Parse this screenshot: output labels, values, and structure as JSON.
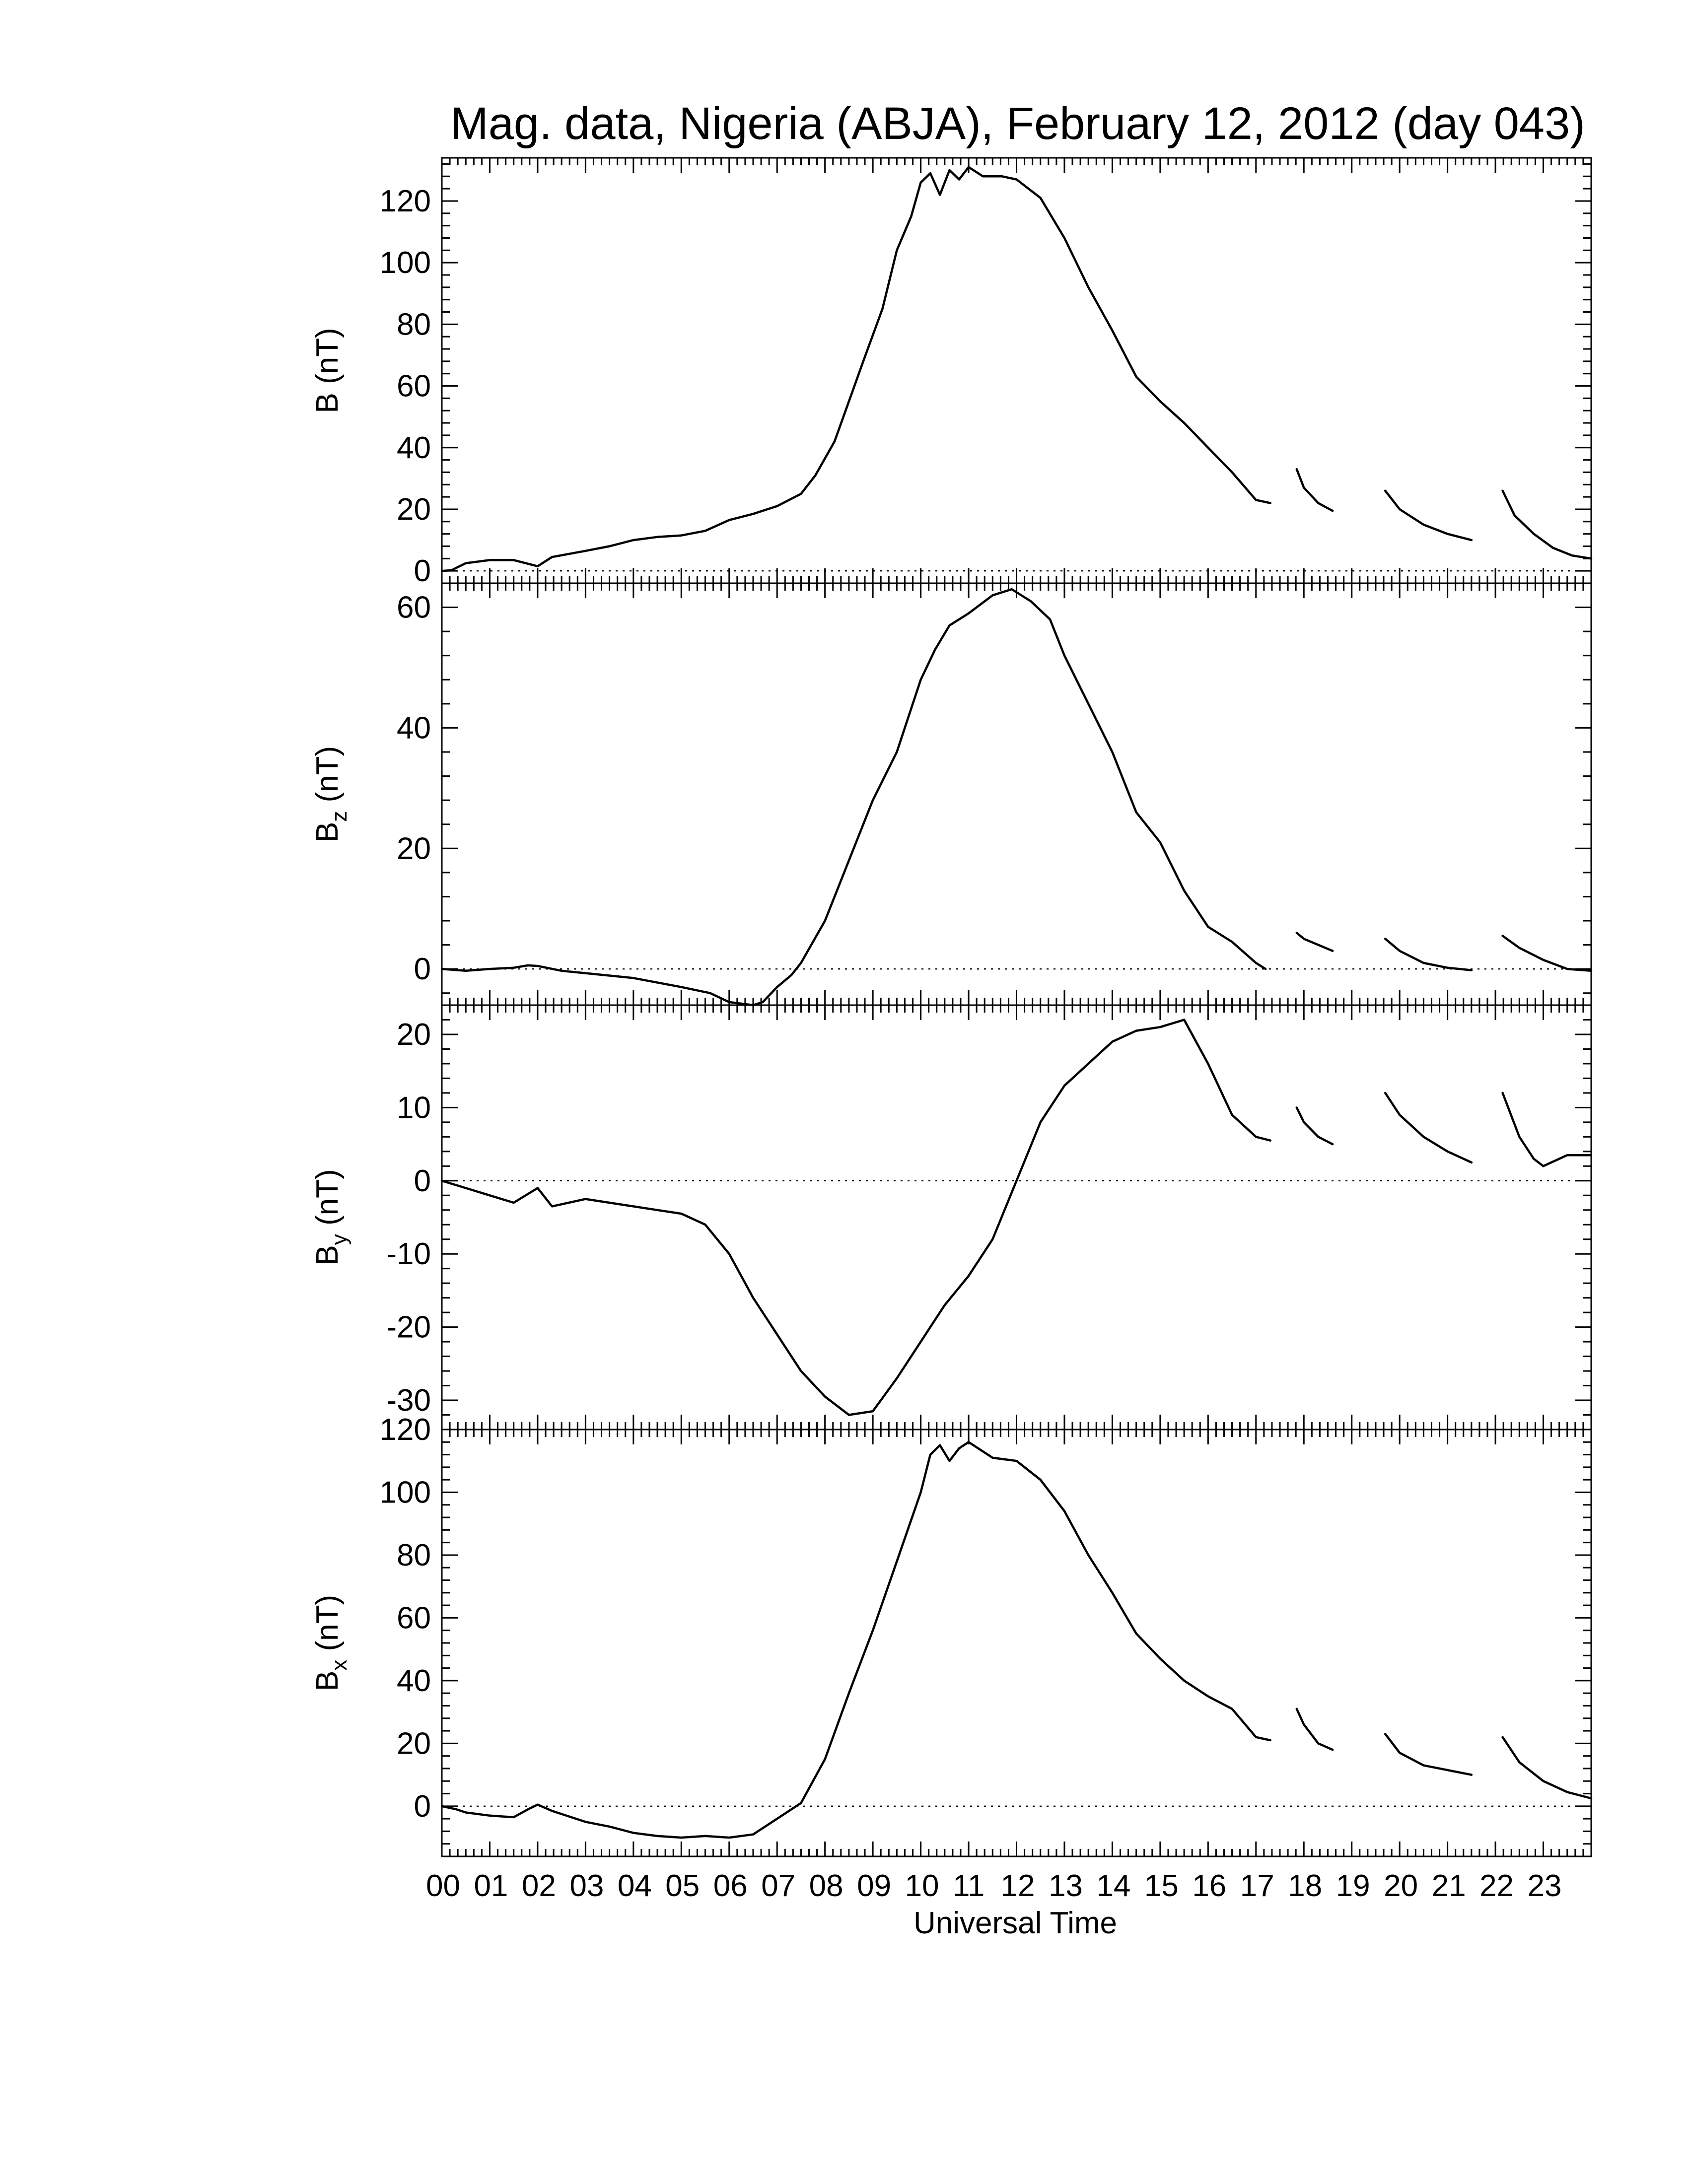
{
  "chart_data": {
    "type": "line",
    "title": "Mag. data, Nigeria (ABJA), February 12, 2012 (day 043)",
    "xlabel": "Universal Time",
    "x_tick_labels": [
      "00",
      "01",
      "02",
      "03",
      "04",
      "05",
      "06",
      "07",
      "08",
      "09",
      "10",
      "11",
      "12",
      "13",
      "14",
      "15",
      "16",
      "17",
      "18",
      "19",
      "20",
      "21",
      "22",
      "23"
    ],
    "xlim": [
      0,
      24
    ],
    "panels": [
      {
        "id": "B",
        "ylabel_main": "B (nT)",
        "ylabel_sub": "",
        "ylim": [
          -4,
          134
        ],
        "yticks": [
          0,
          20,
          40,
          60,
          80,
          100,
          120
        ],
        "ytick_labels": [
          "0",
          "20",
          "40",
          "60",
          "80",
          "100",
          "120"
        ],
        "zero_line": true,
        "segments": [
          [
            [
              0,
              0
            ],
            [
              0.2,
              0.2
            ],
            [
              0.5,
              2.5
            ],
            [
              1.0,
              3.5
            ],
            [
              1.5,
              3.5
            ],
            [
              1.75,
              2.5
            ],
            [
              2.0,
              1.5
            ],
            [
              2.3,
              4.5
            ],
            [
              3.0,
              6.5
            ],
            [
              3.5,
              8
            ],
            [
              4.0,
              10
            ],
            [
              4.5,
              11
            ],
            [
              5.0,
              11.5
            ],
            [
              5.5,
              13
            ],
            [
              6.0,
              16.5
            ],
            [
              6.5,
              18.5
            ],
            [
              7.0,
              21
            ],
            [
              7.5,
              25
            ],
            [
              7.8,
              31
            ],
            [
              8.2,
              42
            ],
            [
              8.5,
              55
            ],
            [
              8.8,
              68
            ],
            [
              9.2,
              85
            ],
            [
              9.5,
              104
            ],
            [
              9.8,
              115
            ],
            [
              10.0,
              126
            ],
            [
              10.2,
              129
            ],
            [
              10.4,
              122
            ],
            [
              10.6,
              130
            ],
            [
              10.8,
              127
            ],
            [
              11.0,
              131
            ],
            [
              11.3,
              128
            ],
            [
              11.7,
              128
            ],
            [
              12.0,
              127
            ],
            [
              12.5,
              121
            ],
            [
              13.0,
              108
            ],
            [
              13.5,
              92
            ],
            [
              14.0,
              78
            ],
            [
              14.5,
              63
            ],
            [
              15.0,
              55
            ],
            [
              15.5,
              48
            ],
            [
              16.0,
              40
            ],
            [
              16.5,
              32
            ],
            [
              17.0,
              23
            ],
            [
              17.3,
              22
            ]
          ],
          [
            [
              17.85,
              33
            ],
            [
              18.0,
              27
            ],
            [
              18.3,
              22
            ],
            [
              18.6,
              19.5
            ]
          ],
          [
            [
              19.7,
              26
            ],
            [
              20.0,
              20
            ],
            [
              20.5,
              15
            ],
            [
              21.0,
              12
            ],
            [
              21.5,
              10
            ]
          ],
          [
            [
              22.15,
              26
            ],
            [
              22.4,
              18
            ],
            [
              22.8,
              12
            ],
            [
              23.2,
              7.5
            ],
            [
              23.6,
              5
            ],
            [
              24.0,
              4
            ]
          ]
        ]
      },
      {
        "id": "Bz",
        "ylabel_main": "B",
        "ylabel_sub": "z",
        "ylabel_unit": " (nT)",
        "ylim": [
          -6,
          64
        ],
        "yticks": [
          0,
          20,
          40,
          60
        ],
        "ytick_labels": [
          "0",
          "20",
          "40",
          "60"
        ],
        "zero_line": true,
        "segments": [
          [
            [
              0,
              0
            ],
            [
              0.5,
              -0.3
            ],
            [
              1.0,
              0
            ],
            [
              1.5,
              0.2
            ],
            [
              1.8,
              0.6
            ],
            [
              2.0,
              0.5
            ],
            [
              2.5,
              -0.3
            ],
            [
              3.0,
              -0.7
            ],
            [
              4.0,
              -1.5
            ],
            [
              5.0,
              -3
            ],
            [
              5.6,
              -4
            ],
            [
              6.0,
              -5.5
            ],
            [
              6.5,
              -6
            ],
            [
              6.7,
              -5.5
            ],
            [
              7.0,
              -3
            ],
            [
              7.3,
              -1
            ],
            [
              7.5,
              1
            ],
            [
              8.0,
              8
            ],
            [
              8.5,
              18
            ],
            [
              9.0,
              28
            ],
            [
              9.5,
              36
            ],
            [
              10.0,
              48
            ],
            [
              10.3,
              53
            ],
            [
              10.6,
              57
            ],
            [
              11.0,
              59
            ],
            [
              11.5,
              62
            ],
            [
              11.9,
              63
            ],
            [
              12.3,
              61
            ],
            [
              12.7,
              58
            ],
            [
              13.0,
              52
            ],
            [
              13.5,
              44
            ],
            [
              14.0,
              36
            ],
            [
              14.5,
              26
            ],
            [
              15.0,
              21
            ],
            [
              15.5,
              13
            ],
            [
              16.0,
              7
            ],
            [
              16.5,
              4.5
            ],
            [
              17.0,
              1
            ],
            [
              17.2,
              0
            ]
          ],
          [
            [
              17.85,
              6
            ],
            [
              18.0,
              5
            ],
            [
              18.3,
              4
            ],
            [
              18.6,
              3
            ]
          ],
          [
            [
              19.7,
              5
            ],
            [
              20.0,
              3
            ],
            [
              20.5,
              1
            ],
            [
              21.0,
              0.2
            ],
            [
              21.5,
              -0.2
            ]
          ],
          [
            [
              22.15,
              5.5
            ],
            [
              22.5,
              3.5
            ],
            [
              23.0,
              1.5
            ],
            [
              23.5,
              0
            ],
            [
              24.0,
              -0.3
            ]
          ]
        ]
      },
      {
        "id": "By",
        "ylabel_main": "B",
        "ylabel_sub": "y",
        "ylabel_unit": " (nT)",
        "ylim": [
          -34,
          24
        ],
        "yticks": [
          -30,
          -20,
          -10,
          0,
          10,
          20
        ],
        "ytick_labels": [
          "-30",
          "-20",
          "-10",
          "0",
          "10",
          "20"
        ],
        "zero_line": true,
        "segments": [
          [
            [
              0,
              0
            ],
            [
              0.5,
              -1
            ],
            [
              1.0,
              -2
            ],
            [
              1.5,
              -3
            ],
            [
              2.0,
              -1
            ],
            [
              2.3,
              -3.5
            ],
            [
              3.0,
              -2.5
            ],
            [
              3.5,
              -3
            ],
            [
              4.0,
              -3.5
            ],
            [
              4.5,
              -4
            ],
            [
              5.0,
              -4.5
            ],
            [
              5.5,
              -6
            ],
            [
              6.0,
              -10
            ],
            [
              6.5,
              -16
            ],
            [
              7.0,
              -21
            ],
            [
              7.5,
              -26
            ],
            [
              8.0,
              -29.5
            ],
            [
              8.5,
              -32
            ],
            [
              9.0,
              -31.5
            ],
            [
              9.5,
              -27
            ],
            [
              10.0,
              -22
            ],
            [
              10.5,
              -17
            ],
            [
              11.0,
              -13
            ],
            [
              11.5,
              -8
            ],
            [
              12.0,
              0
            ],
            [
              12.5,
              8
            ],
            [
              13.0,
              13
            ],
            [
              13.5,
              16
            ],
            [
              14.0,
              19
            ],
            [
              14.5,
              20.5
            ],
            [
              15.0,
              21
            ],
            [
              15.5,
              22
            ],
            [
              16.0,
              16
            ],
            [
              16.5,
              9
            ],
            [
              17.0,
              6
            ],
            [
              17.3,
              5.5
            ]
          ],
          [
            [
              17.85,
              10
            ],
            [
              18.0,
              8
            ],
            [
              18.3,
              6
            ],
            [
              18.6,
              5
            ]
          ],
          [
            [
              19.7,
              12
            ],
            [
              20.0,
              9
            ],
            [
              20.5,
              6
            ],
            [
              21.0,
              4
            ],
            [
              21.5,
              2.5
            ]
          ],
          [
            [
              22.15,
              12
            ],
            [
              22.5,
              6
            ],
            [
              22.8,
              3
            ],
            [
              23.0,
              2
            ],
            [
              23.5,
              3.5
            ],
            [
              24.0,
              3.5
            ]
          ]
        ]
      },
      {
        "id": "Bx",
        "ylabel_main": "B",
        "ylabel_sub": "x",
        "ylabel_unit": " (nT)",
        "ylim": [
          -16,
          120
        ],
        "yticks": [
          0,
          20,
          40,
          60,
          80,
          100,
          120
        ],
        "ytick_labels": [
          "0",
          "20",
          "40",
          "60",
          "80",
          "100",
          "120"
        ],
        "zero_line": true,
        "segments": [
          [
            [
              0,
              0
            ],
            [
              0.3,
              -1
            ],
            [
              0.5,
              -2
            ],
            [
              1.0,
              -3
            ],
            [
              1.5,
              -3.5
            ],
            [
              1.8,
              -1
            ],
            [
              2.0,
              0.5
            ],
            [
              2.3,
              -1.5
            ],
            [
              3.0,
              -5
            ],
            [
              3.5,
              -6.5
            ],
            [
              4.0,
              -8.5
            ],
            [
              4.5,
              -9.5
            ],
            [
              5.0,
              -10
            ],
            [
              5.5,
              -9.5
            ],
            [
              6.0,
              -10
            ],
            [
              6.5,
              -9
            ],
            [
              7.0,
              -4
            ],
            [
              7.5,
              1
            ],
            [
              8.0,
              15
            ],
            [
              8.5,
              36
            ],
            [
              9.0,
              56
            ],
            [
              9.5,
              78
            ],
            [
              10.0,
              100
            ],
            [
              10.2,
              112
            ],
            [
              10.4,
              115
            ],
            [
              10.6,
              110
            ],
            [
              10.8,
              114
            ],
            [
              11.0,
              116
            ],
            [
              11.5,
              111
            ],
            [
              12.0,
              110
            ],
            [
              12.5,
              104
            ],
            [
              13.0,
              94
            ],
            [
              13.5,
              80
            ],
            [
              14.0,
              68
            ],
            [
              14.5,
              55
            ],
            [
              15.0,
              47
            ],
            [
              15.5,
              40
            ],
            [
              16.0,
              35
            ],
            [
              16.5,
              31
            ],
            [
              17.0,
              22
            ],
            [
              17.3,
              21
            ]
          ],
          [
            [
              17.85,
              31
            ],
            [
              18.0,
              26
            ],
            [
              18.3,
              20
            ],
            [
              18.6,
              18
            ]
          ],
          [
            [
              19.7,
              23
            ],
            [
              20.0,
              17
            ],
            [
              20.5,
              13
            ],
            [
              21.0,
              11.5
            ],
            [
              21.5,
              10
            ]
          ],
          [
            [
              22.15,
              22
            ],
            [
              22.5,
              14
            ],
            [
              23.0,
              8
            ],
            [
              23.5,
              4.5
            ],
            [
              24.0,
              2.5
            ]
          ]
        ]
      }
    ]
  }
}
